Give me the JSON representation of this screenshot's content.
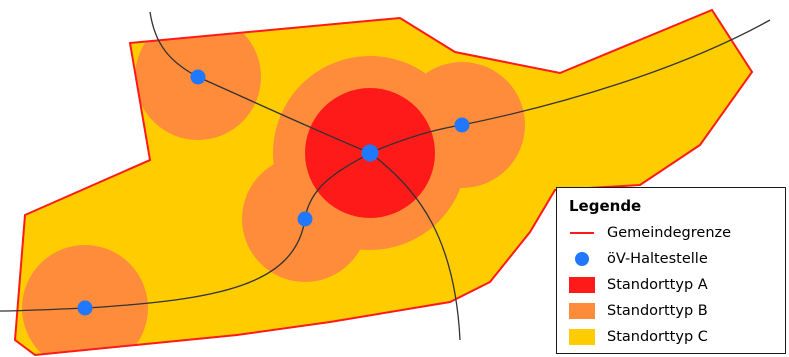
{
  "colors": {
    "boundary": "#ff1a1a",
    "stop": "#1f78ff",
    "type_a": "#ff1a1a",
    "type_b": "#ff8c3a",
    "type_c": "#ffcc00",
    "transit_line": "#333333"
  },
  "legend": {
    "title": "Legende",
    "items": [
      {
        "label": "Gemeindegrenze",
        "symbol": "line",
        "icon": "boundary-line-icon"
      },
      {
        "label": "öV-Haltestelle",
        "symbol": "dot",
        "icon": "transit-stop-icon"
      },
      {
        "label": "Standorttyp A",
        "symbol": "square",
        "icon": "location-type-a-swatch"
      },
      {
        "label": "Standorttyp B",
        "symbol": "square",
        "icon": "location-type-b-swatch"
      },
      {
        "label": "Standorttyp C",
        "symbol": "square",
        "icon": "location-type-c-swatch"
      }
    ]
  }
}
